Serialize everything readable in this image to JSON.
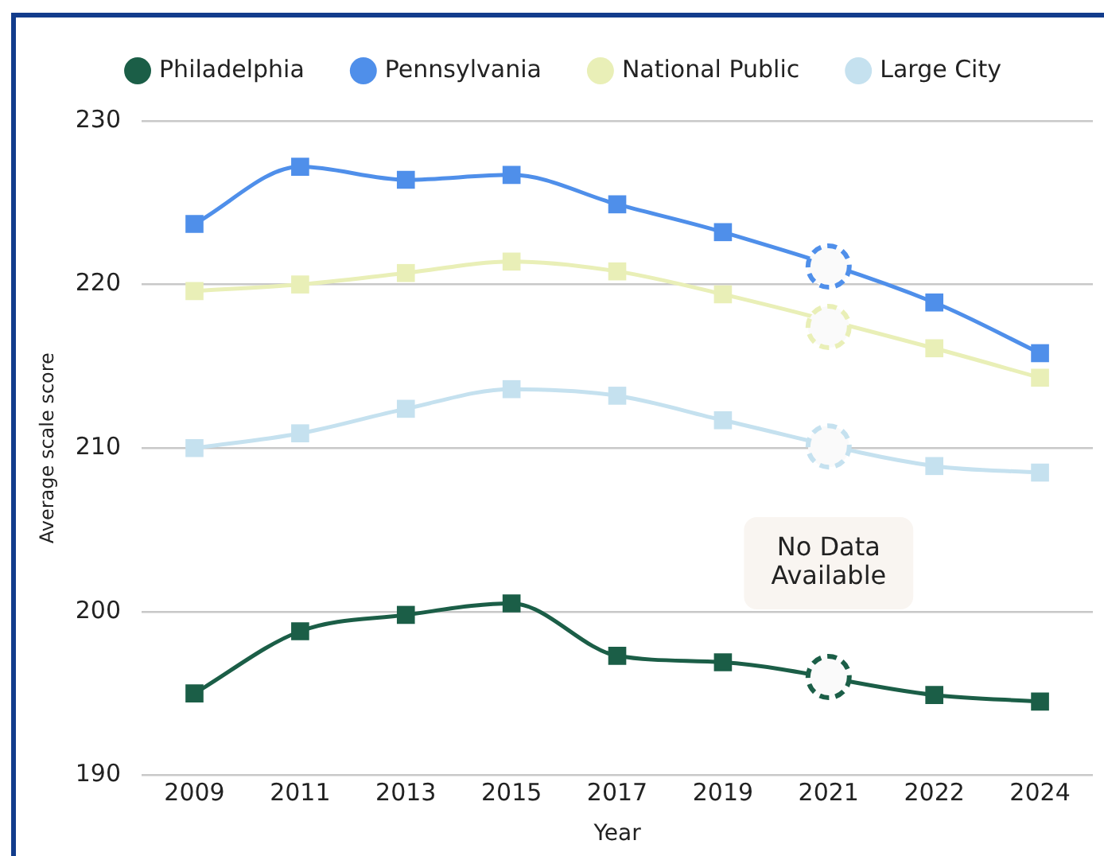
{
  "chart_data": {
    "type": "line",
    "categories": [
      "2009",
      "2011",
      "2013",
      "2015",
      "2017",
      "2019",
      "2021",
      "2022",
      "2024"
    ],
    "series": [
      {
        "name": "Philadelphia",
        "color": "#1b5e47",
        "values": [
          195.0,
          198.8,
          199.8,
          200.5,
          197.3,
          196.9,
          null,
          194.9,
          194.5
        ]
      },
      {
        "name": "Pennsylvania",
        "color": "#4f8fea",
        "values": [
          223.7,
          227.2,
          226.4,
          226.7,
          224.9,
          223.2,
          null,
          218.9,
          215.8
        ]
      },
      {
        "name": "National Public",
        "color": "#e9efb7",
        "values": [
          219.6,
          220.0,
          220.7,
          221.4,
          220.8,
          219.4,
          null,
          216.1,
          214.3
        ]
      },
      {
        "name": "Large City",
        "color": "#c5e1ef",
        "values": [
          210.0,
          210.9,
          212.4,
          213.6,
          213.2,
          211.7,
          null,
          208.9,
          208.5
        ]
      },
      {
        "type": "scatter",
        "color": "#1b5e47",
        "values": [
          null,
          null,
          null,
          null,
          null,
          null,
          196.0,
          null,
          null
        ],
        "marker": "circle",
        "line_style": "dashed"
      },
      {
        "type": "scatter",
        "color": "#4f8fea",
        "values": [
          null,
          null,
          null,
          null,
          null,
          null,
          221.1,
          null,
          null
        ],
        "marker": "circle",
        "line_style": "dashed"
      },
      {
        "type": "scatter",
        "color": "#e9efb7",
        "values": [
          null,
          null,
          null,
          null,
          null,
          null,
          217.4,
          null,
          null
        ],
        "marker": "circle",
        "line_style": "dashed"
      },
      {
        "type": "scatter",
        "color": "#c5e1ef",
        "values": [
          null,
          null,
          null,
          null,
          null,
          null,
          210.1,
          null,
          null
        ],
        "marker": "circle",
        "line_style": "dashed"
      }
    ],
    "xlabel": "Year",
    "ylabel": "Average scale score",
    "ylim": [
      190,
      230
    ],
    "yticks": [
      190,
      200,
      210,
      220,
      230
    ],
    "grid": "y",
    "legend": "top",
    "marker": "square",
    "line_style": "solid",
    "annotations": [
      "No Data Available"
    ]
  }
}
